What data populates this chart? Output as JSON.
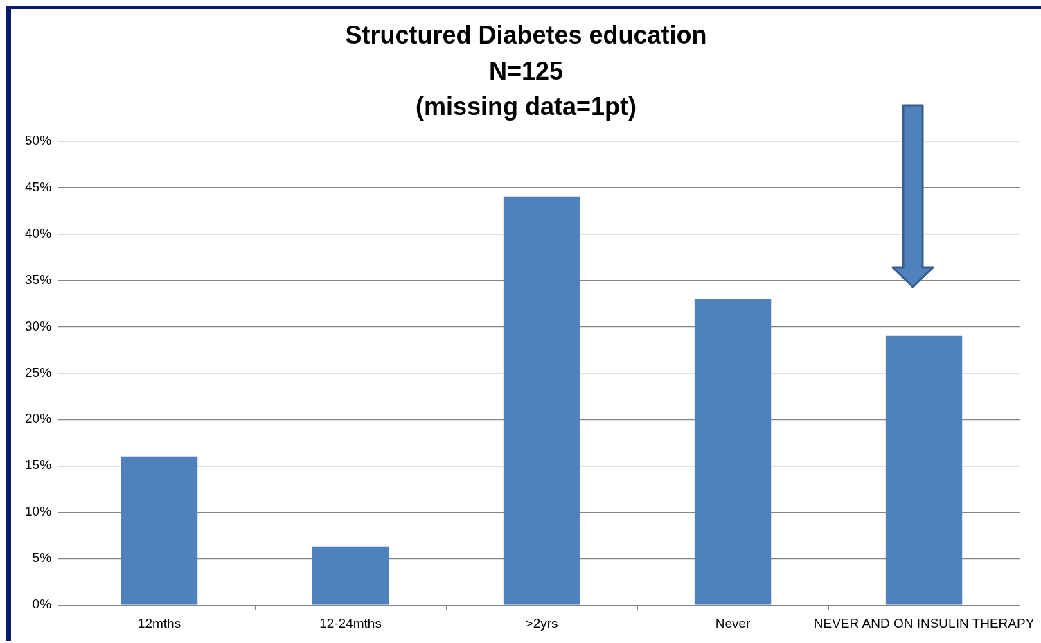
{
  "chart_data": {
    "type": "bar",
    "title": "Structured Diabetes education\nN=125\n(missing data=1pt)",
    "categories": [
      "12mths",
      "12-24mths",
      ">2yrs",
      "Never",
      "NEVER AND ON INSULIN THERAPY"
    ],
    "values": [
      16,
      6.3,
      44,
      33,
      29
    ],
    "color": "#4f81bd",
    "ylim": [
      0,
      50
    ],
    "yticks": [
      {
        "value": 0,
        "label": "0%"
      },
      {
        "value": 5,
        "label": "5%"
      },
      {
        "value": 10,
        "label": "10%"
      },
      {
        "value": 15,
        "label": "15%"
      },
      {
        "value": 20,
        "label": "20%"
      },
      {
        "value": 25,
        "label": "25%"
      },
      {
        "value": 30,
        "label": "30%"
      },
      {
        "value": 35,
        "label": "35%"
      },
      {
        "value": 40,
        "label": "40%"
      },
      {
        "value": 45,
        "label": "45%"
      },
      {
        "value": 50,
        "label": "50%"
      }
    ],
    "grid": "y",
    "legend": false
  }
}
